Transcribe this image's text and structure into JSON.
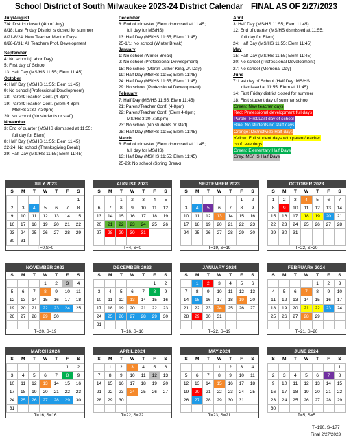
{
  "title_left": "School District of South Milwaukee 2023-24 District Calendar",
  "title_right": "FINAL AS OF 2/27/2023",
  "columns": [
    [
      {
        "h": "July/August"
      },
      {
        "t": "7/4: District closed (4th of July)"
      },
      {
        "t": "8/18: Last Friday District is closed for summer"
      },
      {
        "t": "8/21-8/24: New Teacher Mentor Days"
      },
      {
        "t": "8/28-8/31: All Teachers Prof. Development"
      },
      {
        "gap": true
      },
      {
        "h": "September"
      },
      {
        "t": "4: No school (Labor Day)"
      },
      {
        "t": "5: First day of School"
      },
      {
        "t": "13: Half Day (MS/HS 11:55; Elem 11:45)"
      },
      {
        "h": "October"
      },
      {
        "t": "4: Half Day (MS/HS 11:55; Elem 11:45)"
      },
      {
        "t": "9: No school (Professional Development)"
      },
      {
        "t": "18: Parent/Teacher Conf. (4-8pm)"
      },
      {
        "t": "19: Parent/Teacher Conf. (Elem 4-8pm;"
      },
      {
        "t": "MS/HS 3:30-7:30pm)",
        "ind": true
      },
      {
        "t": "20: No school (No students or staff)"
      },
      {
        "h": "November"
      },
      {
        "t": "3: End of quarter (MS/HS dismissed at 11:55;"
      },
      {
        "t": "full day for Elem)",
        "ind": true
      },
      {
        "t": "8: Half Day (MS/HS 11:55; Elem 11:45)"
      },
      {
        "t": "22-24: No school (Thanksgiving Break)"
      },
      {
        "t": "29: Half Day (MS/HS 11:55; Elem 11:45)"
      }
    ],
    [
      {
        "h": "December"
      },
      {
        "t": "8: End of trimester (Elem dismissed at 11:45;"
      },
      {
        "t": "full day for MS/HS)",
        "ind": true
      },
      {
        "t": "13: Half Day (MS/HS 11:55; Elem 11:45)"
      },
      {
        "t": "25-1/1: No school (Winter Break)"
      },
      {
        "h": "January"
      },
      {
        "t": "1: No school (Winter Break)"
      },
      {
        "t": "2: No school (Professional Development)"
      },
      {
        "t": "15: No school (Martin Luther King, Jr. Day)"
      },
      {
        "t": "19: Half Day (MS/HS 11:55; Elem 11:45)"
      },
      {
        "t": "24: Half Day (MS/HS 11:55; Elem 11:45)"
      },
      {
        "t": "29: No school (Professional Development)"
      },
      {
        "h": "February"
      },
      {
        "t": "7: Half Day (MS/HS 11:55; Elem 11:45)"
      },
      {
        "t": "21: Parent/Teacher Conf. (4-8pm)"
      },
      {
        "t": "22: Parent/Teacher Conf. (Elem 4-8pm;"
      },
      {
        "t": "MS/HS 3:30-7:30pm)",
        "ind": true
      },
      {
        "t": "23: No school (No students or staff)"
      },
      {
        "t": "28: Half Day (MS/HS 11:55; Elem 11:45)"
      },
      {
        "h": "March"
      },
      {
        "t": "8: End of trimester (Elem dismissed at 11:45;"
      },
      {
        "t": "full day for MS/HS)",
        "ind": true
      },
      {
        "t": "13: Half Day (MS/HS 11:55; Elem 11:45)"
      },
      {
        "t": "25-29: No school (Spring Break)"
      }
    ],
    [
      {
        "h": "April"
      },
      {
        "t": "3: Half Day (MS/HS 11:55; Elem 11:45)"
      },
      {
        "t": "12: End of quarter (MS/HS dismissed at 11:55;"
      },
      {
        "t": "full day for Elem)",
        "ind": true
      },
      {
        "t": "24: Half Day (MS/HS 11:55; Elem 11:45)"
      },
      {
        "h": "May"
      },
      {
        "t": "15: Half Day (MS/HS 11:55; Elem 11:45)"
      },
      {
        "t": "20: No school (Professional Development)"
      },
      {
        "t": "27: No school (Memorial Day)"
      },
      {
        "h": "June"
      },
      {
        "t": "7: Last day of School (Half Day: MS/HS"
      },
      {
        "t": "dismissed at 11:55; Elem at 11:45)",
        "ind": true
      },
      {
        "t": "14: First Friday district closed for summer"
      },
      {
        "t": "18: First student day of summer school"
      },
      {
        "t": "Green: New teacher days",
        "bg": "#5cb531"
      },
      {
        "t": "Red: Professional development full days",
        "bg": "#ff0000",
        "fg": "#fff"
      },
      {
        "t": "Purple: First/Last day of school",
        "bg": "#7030a0",
        "fg": "#fff"
      },
      {
        "t": "Blue: No students/no staff days",
        "bg": "#1f9be8",
        "fg": "#fff"
      },
      {
        "t": "Orange: Districtwide Half days",
        "bg": "#f5892b",
        "fg": "#fff"
      },
      {
        "t": "Yellow: Full student days with parent/teacher",
        "bg": "#ffff00"
      },
      {
        "t": "conf. evenings",
        "bg": "#ffff00"
      },
      {
        "t": "Green: Elementary Half Days",
        "bg": "#00b050",
        "fg": "#fff"
      },
      {
        "t": "Grey: MS/HS Half Days",
        "bg": "#bfbfbf"
      }
    ]
  ],
  "dow": [
    "S",
    "M",
    "T",
    "W",
    "T",
    "F",
    "S"
  ],
  "colors": {
    "g": "#5cb531",
    "r": "#ff0000",
    "p": "#7030a0",
    "b": "#1f9be8",
    "o": "#f5892b",
    "y": "#ffff00",
    "e": "#00b050",
    "x": "#bfbfbf"
  },
  "months": [
    {
      "name": "JULY 2023",
      "start": 6,
      "days": 31,
      "foot": "T=0,S=0",
      "hl": {
        "4": "b"
      }
    },
    {
      "name": "AUGUST 2023",
      "start": 2,
      "days": 31,
      "foot": "T=4, S=0",
      "hl": {
        "21": "g",
        "22": "g",
        "23": "g",
        "24": "g",
        "28": "r",
        "29": "r",
        "30": "r",
        "31": "r"
      }
    },
    {
      "name": "SEPTEMBER 2023",
      "start": 5,
      "days": 30,
      "foot": "T=19, S=19",
      "hl": {
        "4": "b",
        "5": "p",
        "13": "o"
      }
    },
    {
      "name": "OCTOBER 2023",
      "start": 0,
      "days": 31,
      "foot": "T=22, S=20",
      "hl": {
        "4": "o",
        "9": "r",
        "18": "y",
        "19": "y",
        "20": "b"
      }
    },
    {
      "name": "NOVEMBER 2023",
      "start": 3,
      "days": 30,
      "foot": "T=20, S=19",
      "hl": {
        "3": "x",
        "8": "o",
        "22": "b",
        "23": "b",
        "24": "b",
        "29": "o"
      }
    },
    {
      "name": "DECEMBER 2023",
      "start": 5,
      "days": 31,
      "foot": "T=16, S=16",
      "hl": {
        "8": "e",
        "13": "o",
        "25": "b",
        "26": "b",
        "27": "b",
        "28": "b",
        "29": "b"
      }
    },
    {
      "name": "JANUARY 2024",
      "start": 1,
      "days": 31,
      "foot": "T=22, S=19",
      "hl": {
        "1": "b",
        "2": "r",
        "15": "b",
        "19": "o",
        "24": "o",
        "29": "r"
      }
    },
    {
      "name": "FEBRUARY 2024",
      "start": 4,
      "days": 29,
      "foot": "T=21, S=20",
      "hl": {
        "7": "o",
        "21": "y",
        "22": "y",
        "23": "b",
        "28": "o"
      }
    },
    {
      "name": "MARCH 2024",
      "start": 5,
      "days": 31,
      "foot": "T=16, S=16",
      "hl": {
        "8": "e",
        "13": "o",
        "25": "b",
        "26": "b",
        "27": "b",
        "28": "b",
        "29": "b"
      }
    },
    {
      "name": "APRIL 2024",
      "start": 1,
      "days": 30,
      "foot": "T=22, S=22",
      "hl": {
        "3": "o",
        "12": "x",
        "24": "o"
      }
    },
    {
      "name": "MAY 2024",
      "start": 3,
      "days": 31,
      "foot": "T=23, S=21",
      "hl": {
        "15": "o",
        "20": "r",
        "27": "b"
      }
    },
    {
      "name": "JUNE 2024",
      "start": 6,
      "days": 30,
      "foot": "T=5, S=5",
      "hl": {
        "7": "p"
      }
    }
  ],
  "summary": "T=190, S=177",
  "final": "Final 2/27/2023"
}
